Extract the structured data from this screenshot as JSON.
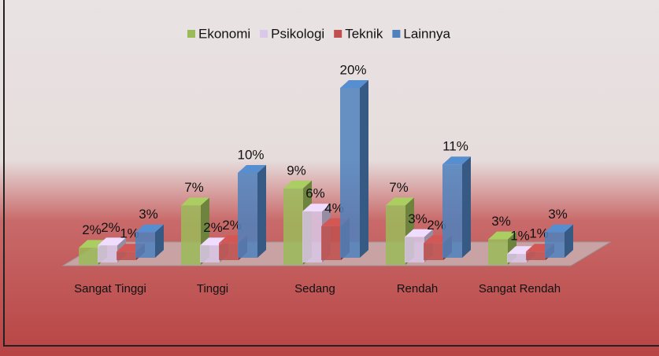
{
  "chart_data": {
    "type": "bar3d",
    "categories": [
      "Sangat Tinggi",
      "Tinggi",
      "Sedang",
      "Rendah",
      "Sangat Rendah"
    ],
    "series": [
      {
        "name": "Ekonomi",
        "color": "#9bbb59",
        "values": [
          2,
          7,
          9,
          7,
          3
        ],
        "value_labels": [
          "2%",
          "7%",
          "9%",
          "7%",
          "3%"
        ]
      },
      {
        "name": "Psikologi",
        "color": "#d9c8e8",
        "values": [
          2,
          2,
          6,
          3,
          1
        ],
        "value_labels": [
          "2%",
          "2%",
          "6%",
          "3%",
          "1%"
        ]
      },
      {
        "name": "Teknik",
        "color": "#c0504d",
        "values": [
          1,
          2,
          4,
          2,
          1
        ],
        "value_labels": [
          "1%",
          "2%",
          "4%",
          "2%",
          "1%"
        ]
      },
      {
        "name": "Lainnya",
        "color": "#4f81bd",
        "values": [
          3,
          10,
          20,
          11,
          3
        ],
        "value_labels": [
          "3%",
          "10%",
          "20%",
          "11%",
          "3%"
        ]
      }
    ],
    "legend": "top"
  }
}
